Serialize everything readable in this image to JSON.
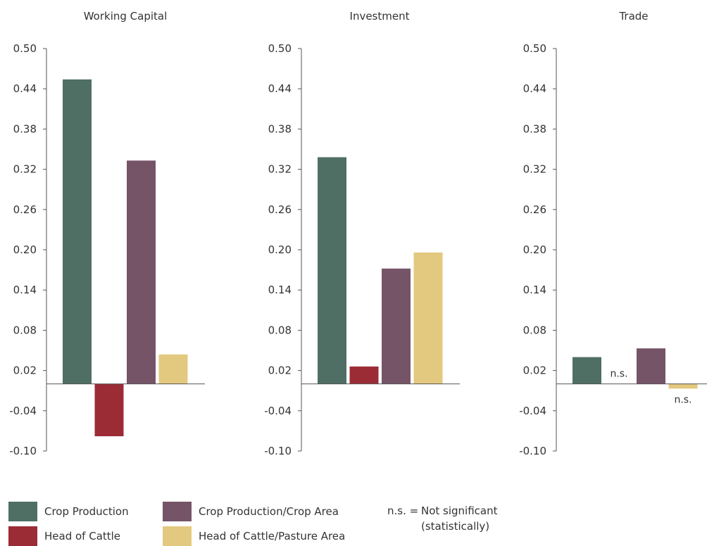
{
  "chart_data": [
    {
      "type": "bar",
      "title": "Working Capital",
      "categories": [
        "Crop Production",
        "Head of Cattle",
        "Crop Production/Crop Area",
        "Head of Cattle/Pasture Area"
      ],
      "values": [
        0.454,
        -0.078,
        0.333,
        0.044
      ],
      "bar_labels": [
        "",
        "",
        "",
        ""
      ],
      "ylim": [
        -0.1,
        0.5
      ],
      "yticks": [
        "0.50",
        "0.44",
        "0.38",
        "0.32",
        "0.26",
        "0.20",
        "0.14",
        "0.08",
        "0.02",
        "-0.04",
        "-0.10"
      ],
      "xlabel": "",
      "ylabel": ""
    },
    {
      "type": "bar",
      "title": "Investment",
      "categories": [
        "Crop Production",
        "Head of Cattle",
        "Crop Production/Crop Area",
        "Head of Cattle/Pasture Area"
      ],
      "values": [
        0.338,
        0.026,
        0.172,
        0.196
      ],
      "bar_labels": [
        "",
        "",
        "",
        ""
      ],
      "ylim": [
        -0.1,
        0.5
      ],
      "yticks": [
        "0.50",
        "0.44",
        "0.38",
        "0.32",
        "0.26",
        "0.20",
        "0.14",
        "0.08",
        "0.02",
        "-0.04",
        "-0.10"
      ],
      "xlabel": "",
      "ylabel": ""
    },
    {
      "type": "bar",
      "title": "Trade",
      "categories": [
        "Crop Production",
        "Head of Cattle",
        "Crop Production/Crop Area",
        "Head of Cattle/Pasture Area"
      ],
      "values": [
        0.04,
        0.0,
        0.053,
        -0.007
      ],
      "bar_labels": [
        "",
        "n.s.",
        "",
        "n.s."
      ],
      "ylim": [
        -0.1,
        0.5
      ],
      "yticks": [
        "0.50",
        "0.44",
        "0.38",
        "0.32",
        "0.26",
        "0.20",
        "0.14",
        "0.08",
        "0.02",
        "-0.04",
        "-0.10"
      ],
      "xlabel": "",
      "ylabel": ""
    }
  ],
  "legend": {
    "placement": "bottom",
    "items": [
      {
        "label": "Crop Production",
        "color": "#4f6f64"
      },
      {
        "label": "Head of Cattle",
        "color": "#9b2c36"
      },
      {
        "label": "Crop Production/Crop Area",
        "color": "#765468"
      },
      {
        "label": "Head of Cattle/Pasture Area",
        "color": "#e3c97f"
      }
    ]
  },
  "note": {
    "key": "n.s. =",
    "line1": "Not significant",
    "line2": "(statistically)"
  }
}
